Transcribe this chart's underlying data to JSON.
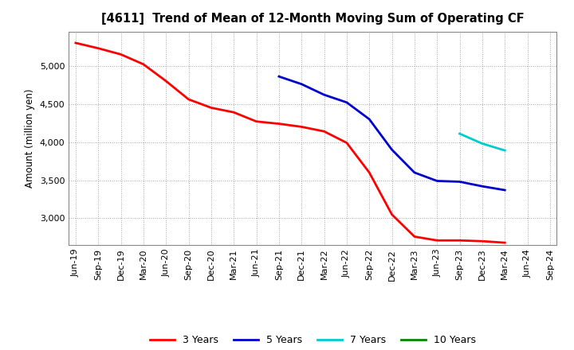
{
  "title": "[4611]  Trend of Mean of 12-Month Moving Sum of Operating CF",
  "ylabel": "Amount (million yen)",
  "background_color": "#ffffff",
  "plot_bg_color": "#ffffff",
  "grid_color": "#999999",
  "ylim": [
    2650,
    5450
  ],
  "yticks": [
    3000,
    3500,
    4000,
    4500,
    5000
  ],
  "x_labels": [
    "Jun-19",
    "Sep-19",
    "Dec-19",
    "Mar-20",
    "Jun-20",
    "Sep-20",
    "Dec-20",
    "Mar-21",
    "Jun-21",
    "Sep-21",
    "Dec-21",
    "Mar-22",
    "Jun-22",
    "Sep-22",
    "Dec-22",
    "Mar-23",
    "Jun-23",
    "Sep-23",
    "Dec-23",
    "Mar-24",
    "Jun-24",
    "Sep-24"
  ],
  "series_3y": {
    "color": "#ff0000",
    "label": "3 Years",
    "data": [
      5300,
      5230,
      5150,
      5020,
      4800,
      4560,
      4450,
      4390,
      4270,
      4240,
      4200,
      4140,
      3990,
      3600,
      3050,
      2760,
      2710,
      2710,
      2700,
      2680,
      null,
      null
    ]
  },
  "series_5y": {
    "color": "#0000cc",
    "label": "5 Years",
    "data": [
      null,
      null,
      null,
      null,
      null,
      null,
      null,
      null,
      null,
      4860,
      4760,
      4620,
      4520,
      4300,
      3900,
      3600,
      3490,
      3480,
      3420,
      3370,
      null,
      null
    ]
  },
  "series_7y": {
    "color": "#00cccc",
    "label": "7 Years",
    "data": [
      null,
      null,
      null,
      null,
      null,
      null,
      null,
      null,
      null,
      null,
      null,
      null,
      null,
      null,
      null,
      null,
      null,
      4110,
      3980,
      3890,
      null,
      null
    ]
  },
  "series_10y": {
    "color": "#008800",
    "label": "10 Years",
    "data": [
      null,
      null,
      null,
      null,
      null,
      null,
      null,
      null,
      null,
      null,
      null,
      null,
      null,
      null,
      null,
      null,
      null,
      null,
      null,
      null,
      null,
      null
    ]
  },
  "legend_colors": [
    "#ff0000",
    "#0000cc",
    "#00cccc",
    "#008800"
  ],
  "legend_labels": [
    "3 Years",
    "5 Years",
    "7 Years",
    "10 Years"
  ]
}
